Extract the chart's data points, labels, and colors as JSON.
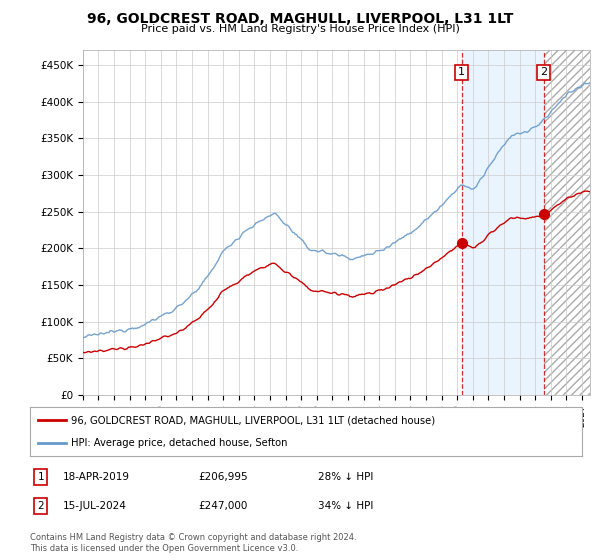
{
  "title": "96, GOLDCREST ROAD, MAGHULL, LIVERPOOL, L31 1LT",
  "subtitle": "Price paid vs. HM Land Registry's House Price Index (HPI)",
  "ylabel_ticks": [
    "£0",
    "£50K",
    "£100K",
    "£150K",
    "£200K",
    "£250K",
    "£300K",
    "£350K",
    "£400K",
    "£450K"
  ],
  "ytick_values": [
    0,
    50000,
    100000,
    150000,
    200000,
    250000,
    300000,
    350000,
    400000,
    450000
  ],
  "ylim": [
    0,
    470000
  ],
  "xlim_start": 1995.3,
  "xlim_end": 2027.5,
  "hpi_color": "#6699cc",
  "price_color": "#cc0000",
  "bg_color": "#ffffff",
  "grid_color": "#cccccc",
  "sale1_x": 2019.29,
  "sale1_y": 206995,
  "sale2_x": 2024.54,
  "sale2_y": 247000,
  "vline1_x": 2019.29,
  "vline2_x": 2024.54,
  "shade_start": 2019.29,
  "shade_end": 2024.54,
  "hatch_start": 2024.54,
  "hatch_end": 2027.5,
  "legend_property_label": "96, GOLDCREST ROAD, MAGHULL, LIVERPOOL, L31 1LT (detached house)",
  "legend_hpi_label": "HPI: Average price, detached house, Sefton",
  "note1_label": "1",
  "note1_date": "18-APR-2019",
  "note1_price": "£206,995",
  "note1_hpi": "28% ↓ HPI",
  "note2_label": "2",
  "note2_date": "15-JUL-2024",
  "note2_price": "£247,000",
  "note2_hpi": "34% ↓ HPI",
  "footnote": "Contains HM Land Registry data © Crown copyright and database right 2024.\nThis data is licensed under the Open Government Licence v3.0."
}
